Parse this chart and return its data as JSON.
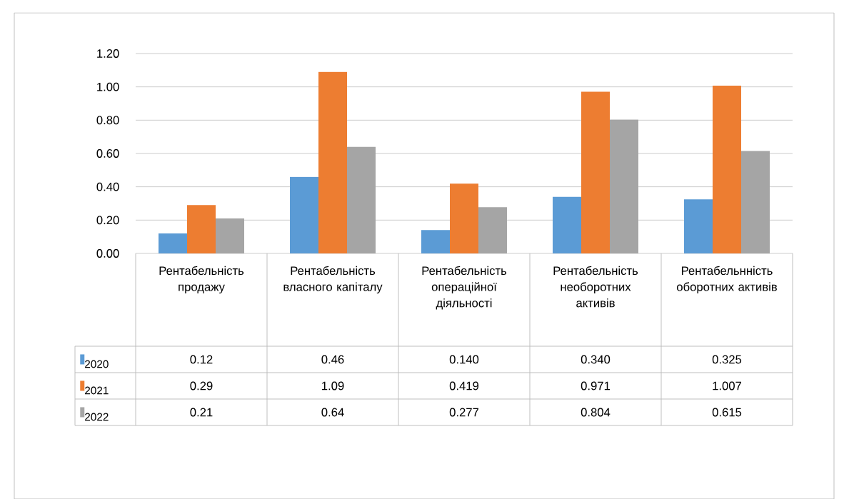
{
  "chart_data": {
    "type": "bar",
    "categories": [
      "Рентабельність продажу",
      "Рентабельність власного капіталу",
      "Рентабельність операційної діяльності",
      "Рентабельність необоротних активів",
      "Рентабельнність оборотних активів"
    ],
    "series": [
      {
        "name": "2020",
        "color": "#5b9bd5",
        "values": [
          0.12,
          0.46,
          0.14,
          0.34,
          0.325
        ],
        "value_labels": [
          "0.12",
          "0.46",
          "0.140",
          "0.340",
          "0.325"
        ]
      },
      {
        "name": "2021",
        "color": "#ed7d31",
        "values": [
          0.29,
          1.09,
          0.419,
          0.971,
          1.007
        ],
        "value_labels": [
          "0.29",
          "1.09",
          "0.419",
          "0.971",
          "1.007"
        ]
      },
      {
        "name": "2022",
        "color": "#a5a5a5",
        "values": [
          0.21,
          0.64,
          0.277,
          0.804,
          0.615
        ],
        "value_labels": [
          "0.21",
          "0.64",
          "0.277",
          "0.804",
          "0.615"
        ]
      }
    ],
    "ylim": [
      0,
      1.2
    ],
    "yticks": [
      {
        "value": 0,
        "label": "0.00"
      },
      {
        "value": 0.2,
        "label": "0.20"
      },
      {
        "value": 0.4,
        "label": "0.40"
      },
      {
        "value": 0.6,
        "label": "0.60"
      },
      {
        "value": 0.8,
        "label": "0.80"
      },
      {
        "value": 1.0,
        "label": "1.00"
      },
      {
        "value": 1.2,
        "label": "1.20"
      }
    ],
    "grid": "y",
    "legend": "bottom"
  }
}
